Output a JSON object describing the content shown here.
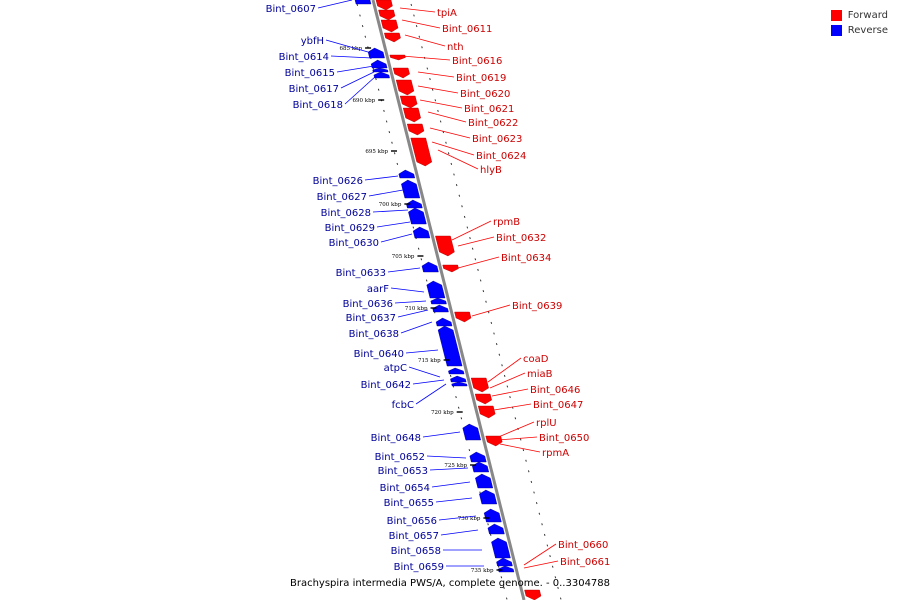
{
  "legend": [
    {
      "label": "Forward",
      "color": "#ff0000"
    },
    {
      "label": "Reverse",
      "color": "#0000ff"
    }
  ],
  "caption": "Brachyspira intermedia PWS/A, complete genome. - 0..3304788",
  "colors": {
    "forward": "#ff0000",
    "reverse": "#0000ff",
    "forward_label": "#cc0000",
    "reverse_label": "#000099",
    "backbone": "#888888"
  },
  "scale_labels": [
    "685 kbp",
    "690 kbp",
    "695 kbp",
    "700 kbp",
    "705 kbp",
    "710 kbp",
    "715 kbp",
    "720 kbp",
    "725 kbp",
    "730 kbp",
    "735 kbp"
  ],
  "forward_genes": [
    "tpiA",
    "Bint_0611",
    "nth",
    "Bint_0616",
    "Bint_0619",
    "Bint_0620",
    "Bint_0621",
    "Bint_0622",
    "Bint_0623",
    "Bint_0624",
    "hlyB",
    "rpmB",
    "Bint_0632",
    "Bint_0634",
    "Bint_0639",
    "coaD",
    "miaB",
    "Bint_0646",
    "Bint_0647",
    "rplU",
    "Bint_0650",
    "rpmA",
    "Bint_0660",
    "Bint_0661"
  ],
  "reverse_genes": [
    "Bint_0607",
    "ybfH",
    "Bint_0614",
    "Bint_0615",
    "Bint_0617",
    "Bint_0618",
    "Bint_0626",
    "Bint_0627",
    "Bint_0628",
    "Bint_0629",
    "Bint_0630",
    "Bint_0633",
    "aarF",
    "Bint_0636",
    "Bint_0637",
    "Bint_0638",
    "Bint_0640",
    "atpC",
    "Bint_0642",
    "fcbC",
    "Bint_0648",
    "Bint_0652",
    "Bint_0653",
    "Bint_0654",
    "Bint_0655",
    "Bint_0656",
    "Bint_0657",
    "Bint_0658",
    "Bint_0659"
  ]
}
